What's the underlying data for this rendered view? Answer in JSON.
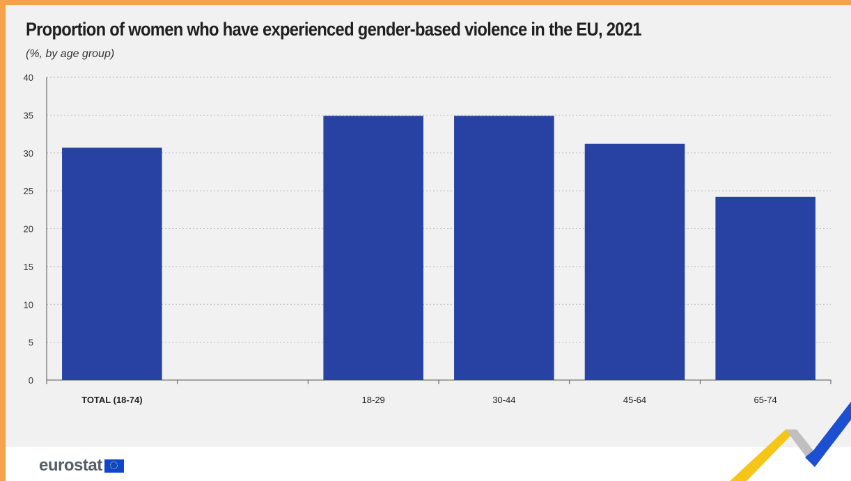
{
  "chart_data": {
    "type": "bar",
    "title": "Proportion of women who have experienced gender-based violence in the EU, 2021",
    "subtitle": "(%, by age group)",
    "categories": [
      "TOTAL (18-74)",
      "",
      "18-29",
      "30-44",
      "45-64",
      "65-74"
    ],
    "values": [
      30.7,
      null,
      34.9,
      34.9,
      31.2,
      24.2
    ],
    "ylim": [
      0,
      40
    ],
    "yticks": [
      0,
      5,
      10,
      15,
      20,
      25,
      30,
      35,
      40
    ],
    "grid": true,
    "bar_color": "#2842a4"
  },
  "footer": {
    "logo_text": "eurostat"
  },
  "colors": {
    "background": "#f1f1f1",
    "frame": "#f4a24c",
    "accent_yellow": "#f5c518",
    "accent_blue": "#1d4fd1"
  }
}
